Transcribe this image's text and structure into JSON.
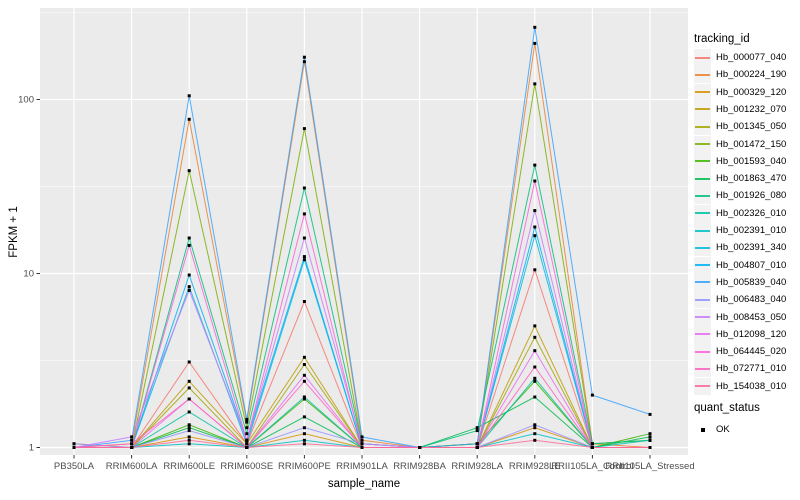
{
  "figure": {
    "background": "#ffffff",
    "panel_background": "#EBEBEB",
    "grid_color": "#FFFFFF",
    "tick_label_color": "#4D4D4D",
    "tick_mark_color": "#333333",
    "point_color": "#000000",
    "legend_key_background": "#F2F2F2"
  },
  "chart_data": {
    "type": "line",
    "title": "",
    "xlabel": "sample_name",
    "ylabel": "FPKM + 1",
    "y_scale": "log10",
    "ylim": [
      1,
      320
    ],
    "y_ticks": [
      100,
      10,
      1
    ],
    "y_tick_labels": [
      "100",
      "10",
      "1"
    ],
    "grid": true,
    "legend_position": "right",
    "legend_title": "tracking_id",
    "point_shape": "filled-black-square",
    "quant_status": {
      "title": "quant_status",
      "values": [
        "OK"
      ]
    },
    "categories": [
      "PB350LA",
      "RRIM600LA",
      "RRIM600LE",
      "RRIM600SE",
      "RRIM600PE",
      "RRIM901LA",
      "RRIM928BA",
      "RRIM928LA",
      "RRIM928LE",
      "RRII105LA_Control",
      "RRII105LA_Stressed"
    ],
    "series": [
      {
        "name": "Hb_000077_040",
        "color": "#F8766D",
        "values": [
          1.0,
          1.0,
          3.1,
          1.05,
          6.9,
          1.0,
          1.0,
          1.0,
          10.5,
          1.0,
          1.0
        ]
      },
      {
        "name": "Hb_000224_190",
        "color": "#EA8331",
        "values": [
          1.0,
          1.05,
          77,
          1.4,
          165,
          1.1,
          1.0,
          1.05,
          210,
          1.05,
          1.0
        ]
      },
      {
        "name": "Hb_000329_120",
        "color": "#D89000",
        "values": [
          1.05,
          1.0,
          1.15,
          1.0,
          1.2,
          1.0,
          1.0,
          1.0,
          1.3,
          1.0,
          1.0
        ]
      },
      {
        "name": "Hb_001232_070",
        "color": "#C09B00",
        "values": [
          1.0,
          1.0,
          2.4,
          1.05,
          3.3,
          1.0,
          1.0,
          1.0,
          5.0,
          1.0,
          1.0
        ]
      },
      {
        "name": "Hb_001345_050",
        "color": "#A3A500",
        "values": [
          1.0,
          1.0,
          2.2,
          1.0,
          3.0,
          1.0,
          1.0,
          1.0,
          4.3,
          1.0,
          1.0
        ]
      },
      {
        "name": "Hb_001472_150",
        "color": "#7CAE00",
        "values": [
          1.0,
          1.0,
          39,
          1.3,
          68,
          1.05,
          1.0,
          1.05,
          123,
          1.05,
          1.1
        ]
      },
      {
        "name": "Hb_001593_040",
        "color": "#39B600",
        "values": [
          1.0,
          1.0,
          1.35,
          1.0,
          1.9,
          1.0,
          1.0,
          1.05,
          2.4,
          1.0,
          1.2
        ]
      },
      {
        "name": "Hb_001863_470",
        "color": "#00BB4E",
        "values": [
          1.0,
          1.0,
          1.3,
          1.0,
          1.5,
          1.0,
          1.0,
          1.3,
          1.95,
          1.0,
          1.15
        ]
      },
      {
        "name": "Hb_001926_080",
        "color": "#00BF7D",
        "values": [
          1.0,
          1.0,
          16,
          1.2,
          31,
          1.05,
          1.0,
          1.25,
          42,
          1.05,
          1.1
        ]
      },
      {
        "name": "Hb_002326_010",
        "color": "#00C1A3",
        "values": [
          1.0,
          1.0,
          1.6,
          1.0,
          1.95,
          1.0,
          1.0,
          1.0,
          2.5,
          1.0,
          1.1
        ]
      },
      {
        "name": "Hb_002391_010",
        "color": "#00BFC4",
        "values": [
          1.0,
          1.0,
          1.05,
          1.0,
          1.1,
          1.0,
          1.0,
          1.0,
          1.2,
          1.0,
          1.0
        ]
      },
      {
        "name": "Hb_002391_340",
        "color": "#00BAE0",
        "values": [
          1.0,
          1.0,
          8.4,
          1.05,
          12.0,
          1.0,
          1.0,
          1.0,
          16.5,
          1.0,
          1.0
        ]
      },
      {
        "name": "Hb_004807_010",
        "color": "#00B0F6",
        "values": [
          1.0,
          1.0,
          9.8,
          1.1,
          12.5,
          1.0,
          1.0,
          1.0,
          18.5,
          1.0,
          1.0
        ]
      },
      {
        "name": "Hb_005839_040",
        "color": "#35A2FF",
        "values": [
          1.0,
          1.1,
          105,
          1.45,
          175,
          1.15,
          1.0,
          1.05,
          260,
          2.0,
          1.55
        ]
      },
      {
        "name": "Hb_006483_040",
        "color": "#9590FF",
        "values": [
          1.05,
          1.0,
          1.25,
          1.0,
          1.3,
          1.05,
          1.0,
          1.0,
          1.35,
          1.0,
          1.0
        ]
      },
      {
        "name": "Hb_008453_050",
        "color": "#C77CFF",
        "values": [
          1.0,
          1.15,
          8.0,
          1.1,
          16,
          1.05,
          1.0,
          1.0,
          23,
          1.0,
          1.0
        ]
      },
      {
        "name": "Hb_012098_120",
        "color": "#E76BF3",
        "values": [
          1.0,
          1.0,
          1.9,
          1.0,
          2.6,
          1.0,
          1.0,
          1.0,
          3.6,
          1.0,
          1.0
        ]
      },
      {
        "name": "Hb_064445_020",
        "color": "#FA62DB",
        "values": [
          1.0,
          1.0,
          14.5,
          1.1,
          22,
          1.0,
          1.0,
          1.0,
          34,
          1.0,
          1.0
        ]
      },
      {
        "name": "Hb_072771_010",
        "color": "#FF62BC",
        "values": [
          1.0,
          1.05,
          1.9,
          1.0,
          2.4,
          1.0,
          1.0,
          1.0,
          2.9,
          1.0,
          1.0
        ]
      },
      {
        "name": "Hb_154038_010",
        "color": "#FF6A98",
        "values": [
          1.0,
          1.0,
          1.1,
          1.0,
          1.05,
          1.0,
          1.0,
          1.0,
          1.1,
          1.0,
          1.0
        ]
      }
    ]
  }
}
